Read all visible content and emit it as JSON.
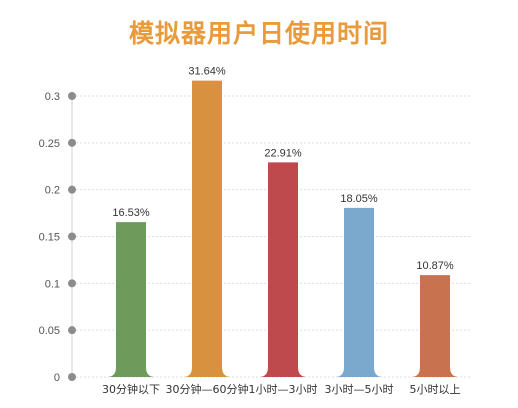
{
  "chart_data": {
    "type": "bar",
    "title": "模拟器用户日使用时间",
    "categories": [
      "30分钟以下",
      "30分钟—60分钟",
      "1小时—3小时",
      "3小时—5小时",
      "5小时以上"
    ],
    "values": [
      0.1653,
      0.3164,
      0.2291,
      0.1805,
      0.1087
    ],
    "data_labels": [
      "16.53%",
      "31.64%",
      "22.91%",
      "18.05%",
      "10.87%"
    ],
    "colors": [
      "#6e9b5c",
      "#d8923f",
      "#bf4a4d",
      "#7ba9cd",
      "#c97250"
    ],
    "yticks": [
      "0",
      "0.05",
      "0.1",
      "0.15",
      "0.2",
      "0.25",
      "0.3"
    ],
    "ytick_values": [
      0,
      0.05,
      0.1,
      0.15,
      0.2,
      0.25,
      0.3
    ],
    "ylim": [
      0,
      0.3
    ],
    "xlabel": "",
    "ylabel": "",
    "grid": true,
    "grid_color": "#dddddd",
    "axis_dot_color": "#8c8c8c",
    "title_color": "#e99a3a"
  }
}
